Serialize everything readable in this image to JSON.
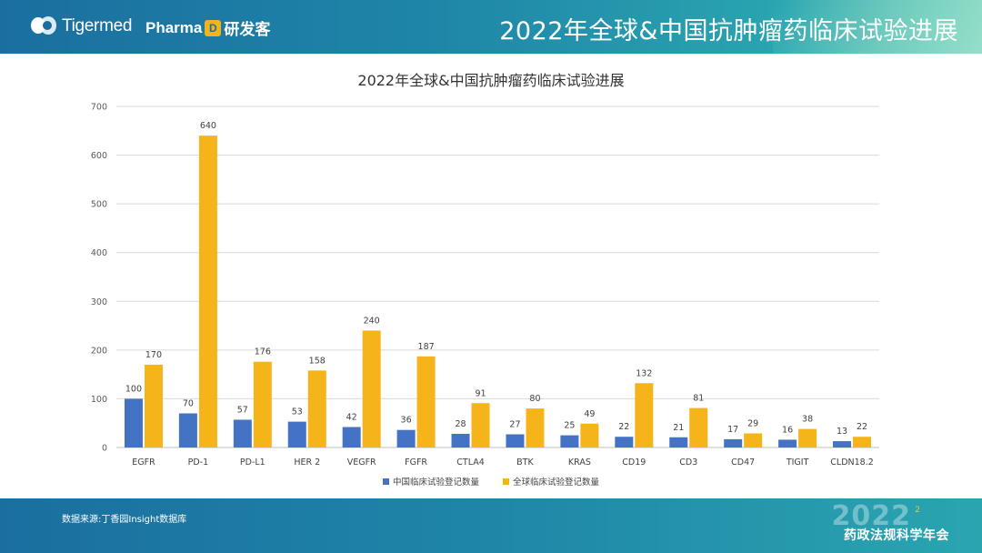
{
  "header": {
    "logo_text": "Tigermed",
    "pharma_text": "Pharma",
    "pharma_badge": "D",
    "pharma_suffix": "研发客",
    "title": "2022年全球&中国抗肿瘤药临床试验进展"
  },
  "colors": {
    "china": "#4472c4",
    "global": "#f4b41a",
    "header": "#1a6fa0",
    "grid": "#d9d9d9"
  },
  "chart_data": {
    "type": "bar",
    "title": "2022年全球&中国抗肿瘤药临床试验进展",
    "categories": [
      "EGFR",
      "PD-1",
      "PD-L1",
      "HER 2",
      "VEGFR",
      "FGFR",
      "CTLA4",
      "BTK",
      "KRAS",
      "CD19",
      "CD3",
      "CD47",
      "TIGIT",
      "CLDN18.2"
    ],
    "series": [
      {
        "name": "中国临床试验登记数量",
        "values": [
          100,
          70,
          57,
          53,
          42,
          36,
          28,
          27,
          25,
          22,
          21,
          17,
          16,
          13
        ]
      },
      {
        "name": "全球临床试验登记数量",
        "values": [
          170,
          640,
          176,
          158,
          240,
          187,
          91,
          80,
          49,
          132,
          81,
          29,
          38,
          22
        ]
      }
    ],
    "ylim": [
      0,
      700
    ],
    "yticks": [
      0,
      100,
      200,
      300,
      400,
      500,
      600,
      700
    ],
    "grid": true,
    "legend": "bottom",
    "data_labels": true
  },
  "footer": {
    "source": "数据来源:丁香园Insight数据库",
    "year_mark": "2022",
    "page": "2",
    "event": "药政法规科学年会"
  }
}
